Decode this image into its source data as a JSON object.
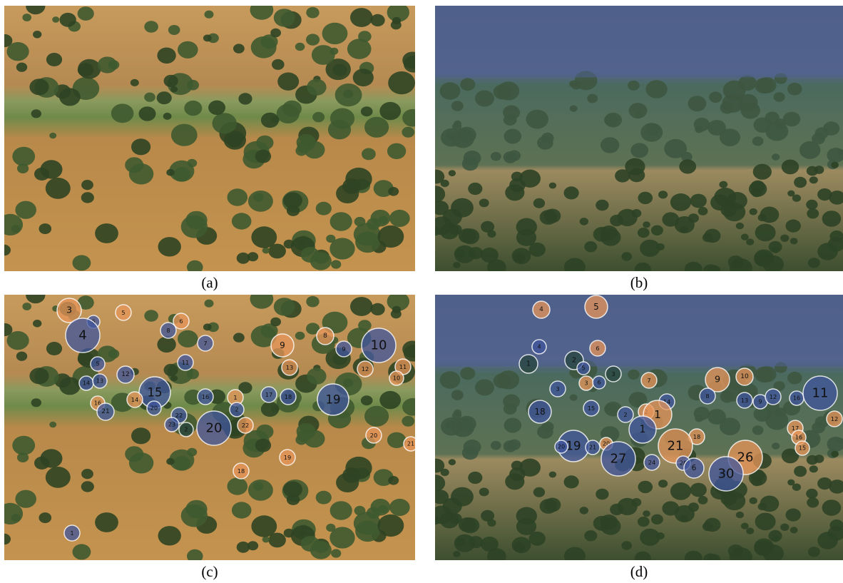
{
  "panels": [
    {
      "caption": "(a)"
    },
    {
      "caption": "(b)"
    },
    {
      "caption": "(c)",
      "fixations": [
        3,
        5,
        6,
        6,
        4,
        8,
        7,
        9,
        8,
        9,
        10,
        11,
        5,
        13,
        12,
        11,
        10,
        12,
        14,
        13,
        15,
        16,
        17,
        18,
        19,
        1,
        14,
        16,
        20,
        21,
        2,
        22,
        23,
        22,
        20,
        2,
        20,
        21,
        19,
        18,
        1
      ]
    },
    {
      "caption": "(d)",
      "fixations": [
        4,
        5,
        6,
        4,
        2,
        1,
        5,
        3,
        3,
        6,
        7,
        9,
        10,
        3,
        14,
        8,
        13,
        9,
        12,
        16,
        11,
        15,
        2,
        2,
        1,
        1,
        18,
        12,
        17,
        16,
        15,
        18,
        21,
        19,
        20,
        21,
        20,
        27,
        24,
        26,
        28,
        6,
        30
      ]
    }
  ]
}
